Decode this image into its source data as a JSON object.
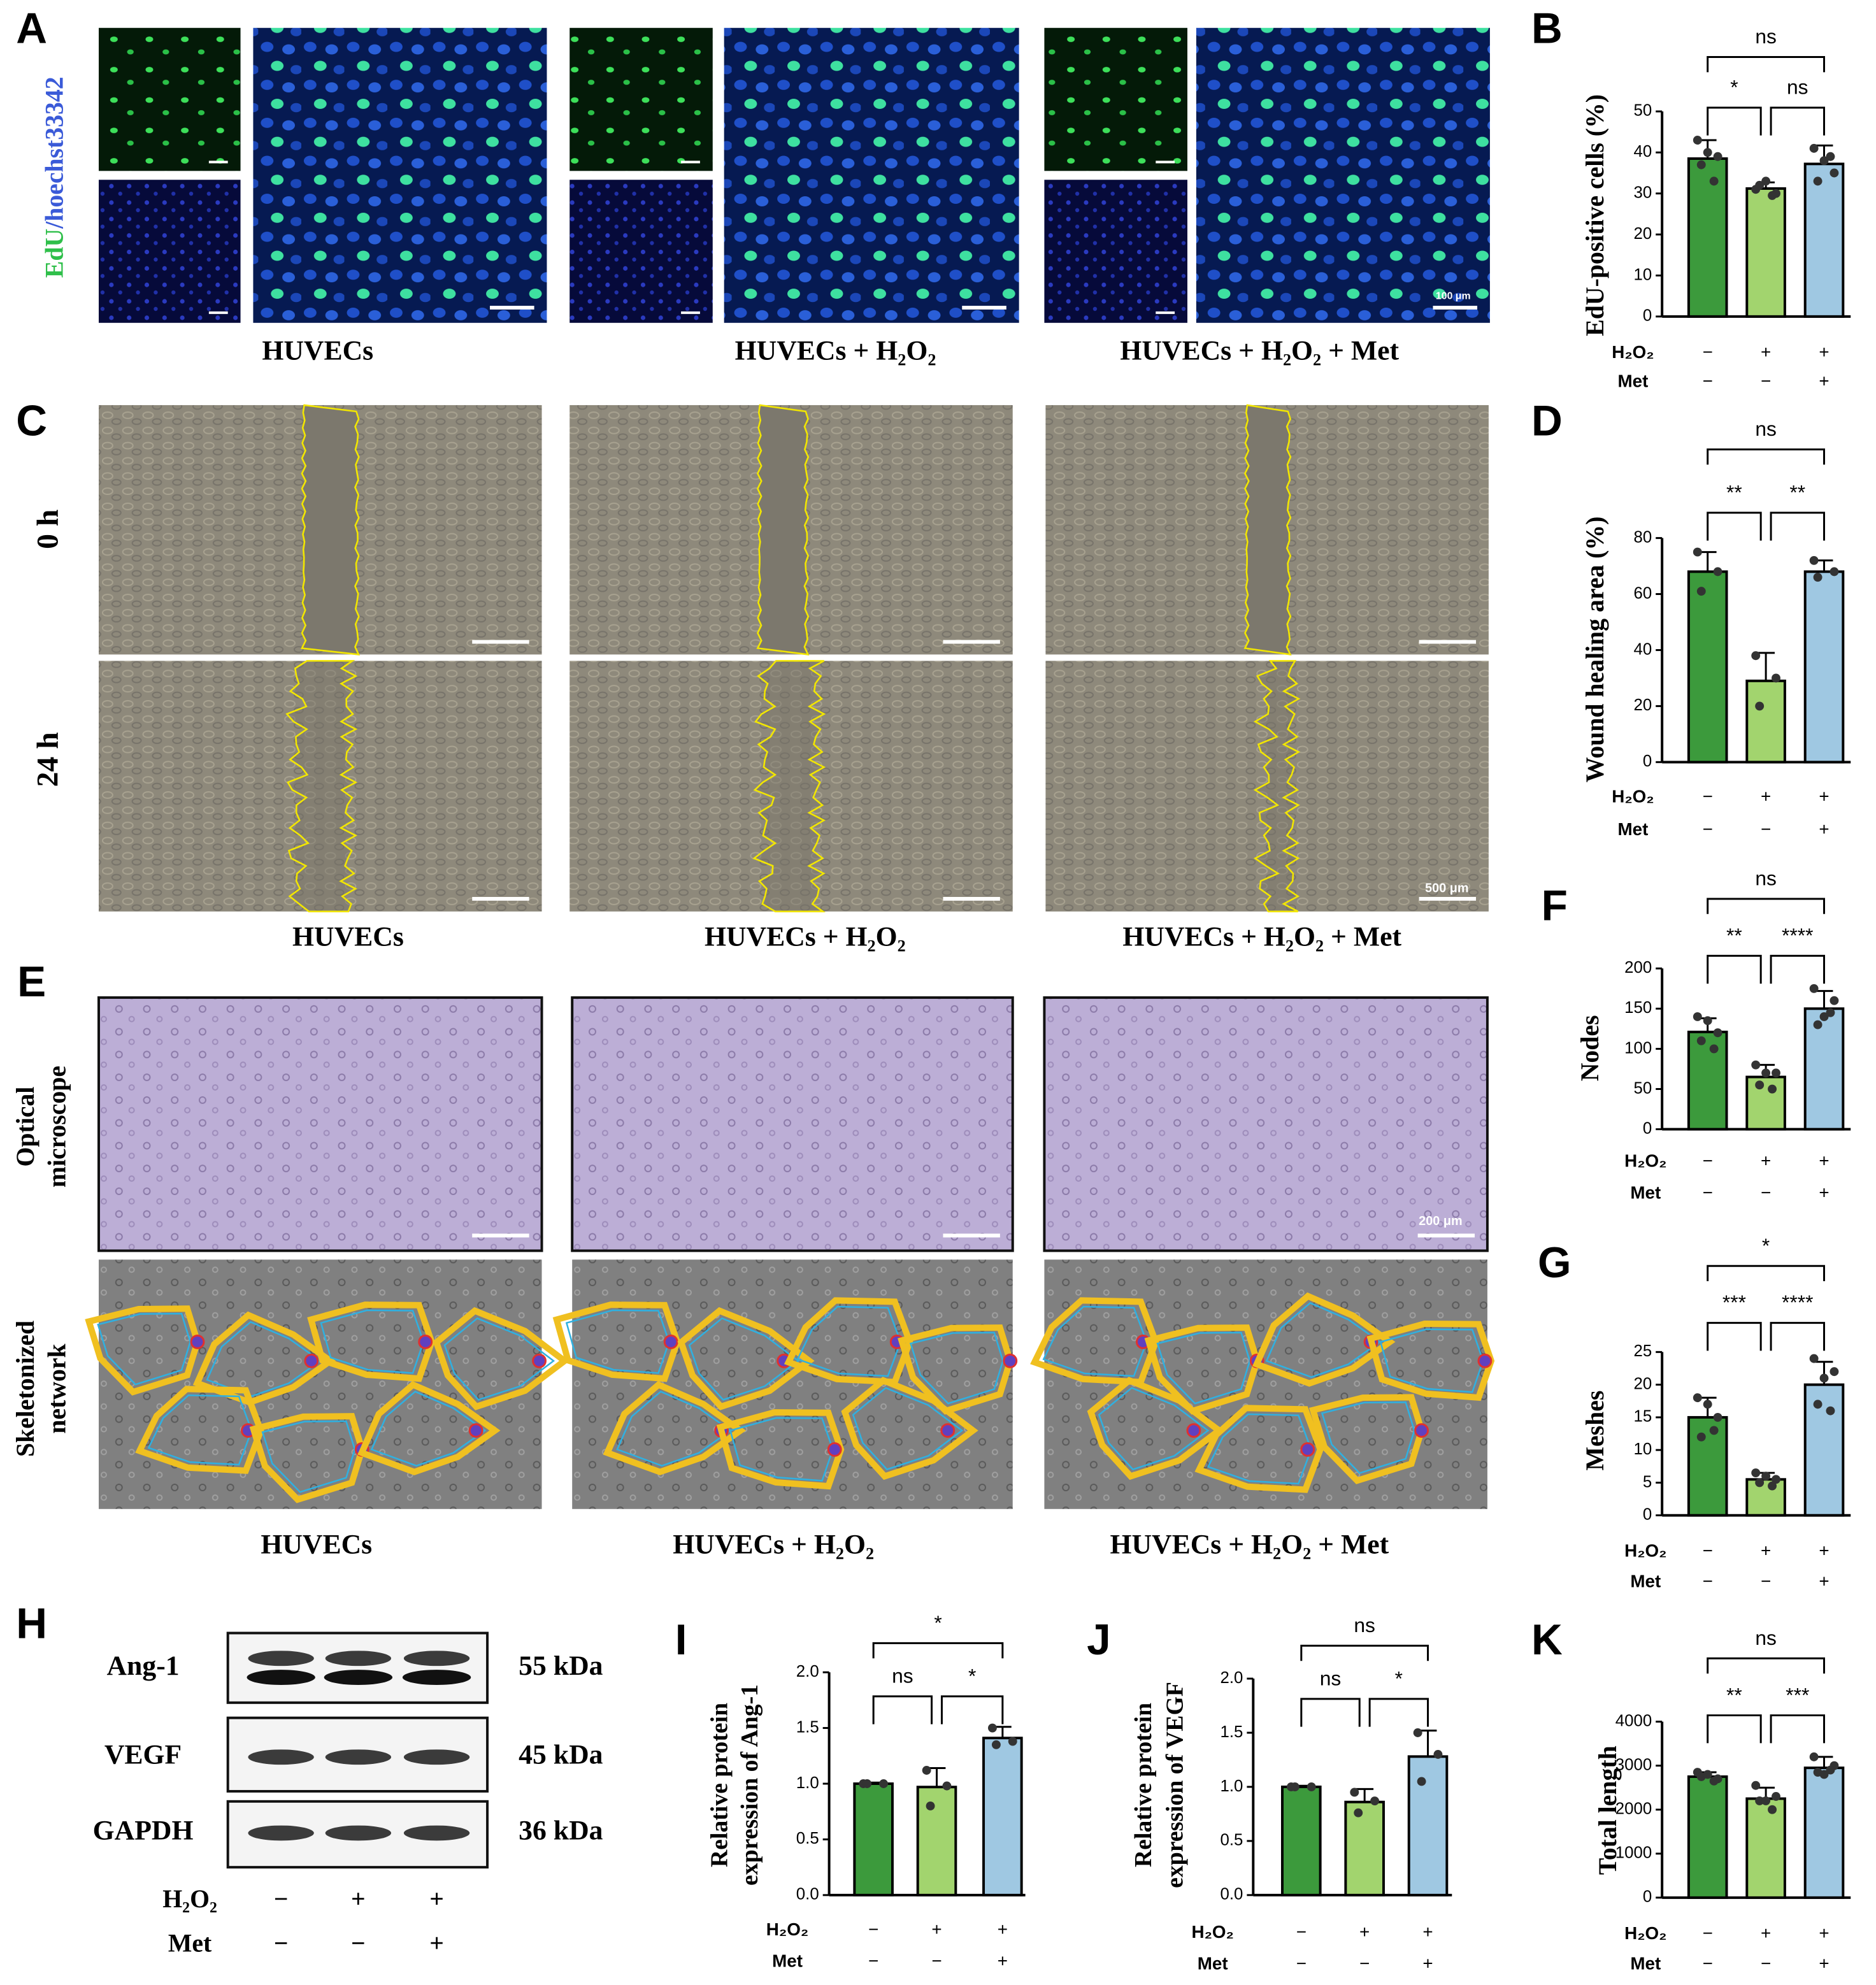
{
  "figure": {
    "panel_labels": [
      "A",
      "C",
      "E",
      "H"
    ],
    "edu_label": [
      "EdU",
      "/hoechst33342"
    ],
    "captions_A": [
      "HUVECs",
      "HUVECs + H₂O₂",
      "HUVECs + H₂O₂ + Met"
    ],
    "captions_C": [
      "HUVECs",
      "HUVECs + H₂O₂",
      "HUVECs + H₂O₂ + Met"
    ],
    "captions_E": [
      "HUVECs",
      "HUVECs + H₂O₂",
      "HUVECs + H₂O₂ + Met"
    ],
    "scale_bars": [
      "100 μm",
      "500 μm",
      "200 μm"
    ],
    "time_labels": [
      "0 h",
      "24 h"
    ],
    "row_labels_E": [
      [
        "Optical",
        "microscope"
      ],
      [
        "Skeletonized",
        "network"
      ]
    ],
    "blot": {
      "proteins": [
        "Ang-1",
        "VEGF",
        "GAPDH"
      ],
      "sizes": [
        "55 kDa",
        "45 kDa",
        "36 kDa"
      ],
      "treatments": [
        {
          "name": "H₂O₂",
          "signs": [
            "−",
            "+",
            "+"
          ]
        },
        {
          "name": "Met",
          "signs": [
            "−",
            "−",
            "+"
          ]
        }
      ]
    }
  },
  "chart_data": [
    {
      "type": "bar",
      "panel": "B",
      "ylabel": "EdU-positive cells (%)",
      "ylim": [
        0,
        50
      ],
      "yticks": [
        0,
        10,
        20,
        30,
        40,
        50
      ],
      "values": [
        38.5,
        31.2,
        37.2
      ],
      "errors": [
        4.5,
        1.5,
        4.5
      ],
      "colors": [
        "#3c9a3c",
        "#a2d46e",
        "#9fc8e2"
      ],
      "points": [
        [
          43,
          39,
          37,
          33,
          40
        ],
        [
          31,
          30,
          32,
          29.5,
          33
        ],
        [
          41,
          35,
          33,
          39,
          38
        ]
      ],
      "significance": [
        "ns",
        "*",
        "ns"
      ],
      "treatments": [
        {
          "name": "H₂O₂",
          "signs": [
            "−",
            "+",
            "+"
          ]
        },
        {
          "name": "Met",
          "signs": [
            "−",
            "−",
            "+"
          ]
        }
      ]
    },
    {
      "type": "bar",
      "panel": "D",
      "ylabel": "Wound healing area (%)",
      "ylim": [
        0,
        80
      ],
      "yticks": [
        0,
        20,
        40,
        60,
        80
      ],
      "values": [
        68,
        29,
        68
      ],
      "errors": [
        7,
        10,
        4
      ],
      "colors": [
        "#3c9a3c",
        "#a2d46e",
        "#9fc8e2"
      ],
      "points": [
        [
          75,
          68,
          61
        ],
        [
          38,
          30,
          20
        ],
        [
          72,
          68,
          66
        ]
      ],
      "significance": [
        "ns",
        "**",
        "**"
      ],
      "treatments": [
        {
          "name": "H₂O₂",
          "signs": [
            "−",
            "+",
            "+"
          ]
        },
        {
          "name": "Met",
          "signs": [
            "−",
            "−",
            "+"
          ]
        }
      ]
    },
    {
      "type": "bar",
      "panel": "F",
      "ylabel": "Nodes",
      "ylim": [
        0,
        200
      ],
      "yticks": [
        0,
        50,
        100,
        150,
        200
      ],
      "values": [
        121,
        65,
        150
      ],
      "errors": [
        17,
        15,
        22
      ],
      "colors": [
        "#3c9a3c",
        "#a2d46e",
        "#9fc8e2"
      ],
      "points": [
        [
          140,
          120,
          110,
          100,
          135
        ],
        [
          80,
          70,
          55,
          50,
          70
        ],
        [
          175,
          160,
          130,
          145,
          140
        ]
      ],
      "significance": [
        "ns",
        "**",
        "****"
      ],
      "treatments": [
        {
          "name": "H₂O₂",
          "signs": [
            "−",
            "+",
            "+"
          ]
        },
        {
          "name": "Met",
          "signs": [
            "−",
            "−",
            "+"
          ]
        }
      ]
    },
    {
      "type": "bar",
      "panel": "G",
      "ylabel": "Meshes",
      "ylim": [
        0,
        25
      ],
      "yticks": [
        0,
        5,
        10,
        15,
        20,
        25
      ],
      "values": [
        15,
        5.5,
        20
      ],
      "errors": [
        3,
        1,
        3.5
      ],
      "colors": [
        "#3c9a3c",
        "#a2d46e",
        "#9fc8e2"
      ],
      "points": [
        [
          18,
          15,
          12,
          13,
          17
        ],
        [
          6.5,
          5.5,
          5,
          4.5,
          6
        ],
        [
          24,
          22,
          17,
          16,
          21
        ]
      ],
      "significance": [
        "*",
        "***",
        "****"
      ],
      "treatments": [
        {
          "name": "H₂O₂",
          "signs": [
            "−",
            "+",
            "+"
          ]
        },
        {
          "name": "Met",
          "signs": [
            "−",
            "−",
            "+"
          ]
        }
      ]
    },
    {
      "type": "bar",
      "panel": "I",
      "ylabel": [
        "Relative protein",
        "expression of Ang-1"
      ],
      "ylim": [
        0,
        2
      ],
      "yticks": [
        {
          "value": 0,
          "label": "0.0"
        },
        {
          "value": 0.5,
          "label": "0.5"
        },
        {
          "value": 1,
          "label": "1.0"
        },
        {
          "value": 1.5,
          "label": "1.5"
        },
        {
          "value": 2,
          "label": "2.0"
        }
      ],
      "values": [
        1.0,
        0.97,
        1.41
      ],
      "errors": [
        0.01,
        0.17,
        0.1
      ],
      "colors": [
        "#3c9a3c",
        "#a2d46e",
        "#9fc8e2"
      ],
      "points": [
        [
          1,
          1,
          1
        ],
        [
          1.12,
          0.98,
          0.8
        ],
        [
          1.5,
          1.38,
          1.35
        ]
      ],
      "significance": [
        "*",
        "ns",
        "*"
      ],
      "treatments": [
        {
          "name": "H₂O₂",
          "signs": [
            "−",
            "+",
            "+"
          ]
        },
        {
          "name": "Met",
          "signs": [
            "−",
            "−",
            "+"
          ]
        }
      ]
    },
    {
      "type": "bar",
      "panel": "J",
      "ylabel": [
        "Relative protein",
        "expression of VEGF"
      ],
      "ylim": [
        0,
        2
      ],
      "yticks": [
        {
          "value": 0,
          "label": "0.0"
        },
        {
          "value": 0.5,
          "label": "0.5"
        },
        {
          "value": 1,
          "label": "1.0"
        },
        {
          "value": 1.5,
          "label": "1.5"
        },
        {
          "value": 2,
          "label": "2.0"
        }
      ],
      "values": [
        1.0,
        0.86,
        1.28
      ],
      "errors": [
        0.01,
        0.12,
        0.24
      ],
      "colors": [
        "#3c9a3c",
        "#a2d46e",
        "#9fc8e2"
      ],
      "points": [
        [
          1,
          1,
          1
        ],
        [
          0.95,
          0.87,
          0.76
        ],
        [
          1.5,
          1.3,
          1.05
        ]
      ],
      "significance": [
        "ns",
        "ns",
        "*"
      ],
      "treatments": [
        {
          "name": "H₂O₂",
          "signs": [
            "−",
            "+",
            "+"
          ]
        },
        {
          "name": "Met",
          "signs": [
            "−",
            "−",
            "+"
          ]
        }
      ]
    },
    {
      "type": "bar",
      "panel": "K",
      "ylabel": "Total length",
      "ylim": [
        0,
        4000
      ],
      "yticks": [
        0,
        1000,
        2000,
        3000,
        4000
      ],
      "values": [
        2750,
        2250,
        2950
      ],
      "errors": [
        100,
        250,
        250
      ],
      "colors": [
        "#3c9a3c",
        "#a2d46e",
        "#9fc8e2"
      ],
      "points": [
        [
          2850,
          2700,
          2750,
          2650,
          2800
        ],
        [
          2550,
          2300,
          2200,
          2000,
          2200
        ],
        [
          3200,
          3000,
          2850,
          2900,
          2800
        ]
      ],
      "significance": [
        "ns",
        "**",
        "***"
      ],
      "treatments": [
        {
          "name": "H₂O₂",
          "signs": [
            "−",
            "+",
            "+"
          ]
        },
        {
          "name": "Met",
          "signs": [
            "−",
            "−",
            "+"
          ]
        }
      ]
    }
  ]
}
